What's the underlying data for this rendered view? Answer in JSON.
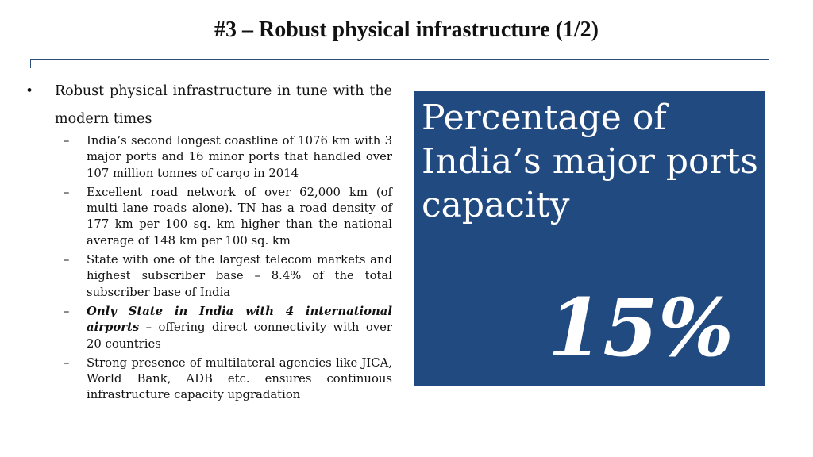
{
  "slide": {
    "title": "#3 – Robust physical infrastructure (1/2)"
  },
  "content": {
    "bullet_marker": "•",
    "main_bullet": "Robust physical infrastructure  in tune with the modern times",
    "dash_marker": "–",
    "sub_bullets": [
      "India’s second longest coastline of 1076 km with 3 major ports and 16 minor ports that handled over 107 million tonnes of cargo in 2014",
      "Excellent road network of over 62,000 km (of multi lane roads alone). TN has a road density of 177 km per 100 sq. km higher than the national average of 148 km per 100 sq. km",
      "State with one of the largest telecom markets and highest subscriber base – 8.4% of the total subscriber base of India",
      {
        "emphasis": "Only State in India with 4 international airports",
        "rest": " – offering direct connectivity with over 20 countries"
      },
      "Strong presence of multilateral agencies like JICA, World Bank, ADB etc. ensures continuous infrastructure capacity upgradation"
    ]
  },
  "highlight_box": {
    "label": "Percentage of India’s major ports capacity",
    "value": "15%",
    "background_color": "#214a80",
    "text_color": "#ffffff"
  },
  "accent_color": "#2b4d7a"
}
